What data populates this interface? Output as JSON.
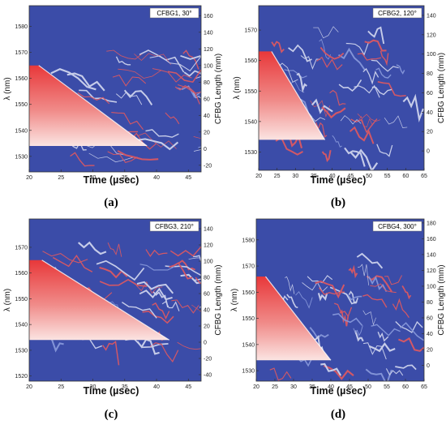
{
  "chart_data": [
    {
      "type": "heatmap",
      "panel_label": "(a)",
      "legend": "CFBG1, 30°",
      "xlabel": "Time (µsec)",
      "ylabel": "λ (nm)",
      "y2label": "CFBG Length (mm)",
      "xlim": [
        20,
        47
      ],
      "xticks": [
        20,
        25,
        30,
        35,
        40,
        45
      ],
      "ylim": [
        1524,
        1588
      ],
      "yticks": [
        1530,
        1540,
        1550,
        1560,
        1570,
        1580
      ],
      "y2lim": [
        -28,
        172
      ],
      "y2ticks": [
        -20,
        0,
        20,
        40,
        60,
        80,
        100,
        120,
        140,
        160
      ],
      "heated_region": {
        "lambda_top": 1565,
        "lambda_bottom": 1534,
        "t_start": 20,
        "t_plateau_end": 21.5,
        "t_ramp_end": 38.5
      }
    },
    {
      "type": "heatmap",
      "panel_label": "(b)",
      "legend": "CFBG2, 120°",
      "xlabel": "Time (µsec)",
      "ylabel": "λ (nm)",
      "y2label": "CFBG Length (mm)",
      "xlim": [
        20,
        65
      ],
      "xticks": [
        20,
        25,
        30,
        35,
        40,
        45,
        50,
        55,
        60,
        65
      ],
      "ylim": [
        1524,
        1578
      ],
      "yticks": [
        1530,
        1540,
        1550,
        1560,
        1570
      ],
      "y2lim": [
        -20,
        150
      ],
      "y2ticks": [
        0,
        20,
        40,
        60,
        80,
        100,
        120,
        140
      ],
      "heated_region": {
        "lambda_top": 1563,
        "lambda_bottom": 1534,
        "t_start": 20,
        "t_plateau_end": 23.5,
        "t_ramp_end": 38
      }
    },
    {
      "type": "heatmap",
      "panel_label": "(c)",
      "legend": "CFBG3, 210°",
      "xlabel": "Time (µsec)",
      "ylabel": "λ (nm)",
      "y2label": "CFBG Length (mm)",
      "xlim": [
        20,
        47
      ],
      "xticks": [
        20,
        25,
        30,
        35,
        40,
        45
      ],
      "ylim": [
        1518,
        1581
      ],
      "yticks": [
        1520,
        1530,
        1540,
        1550,
        1560,
        1570
      ],
      "y2lim": [
        -48,
        152
      ],
      "y2ticks": [
        -40,
        -20,
        0,
        20,
        40,
        60,
        80,
        100,
        120,
        140
      ],
      "heated_region": {
        "lambda_top": 1565,
        "lambda_bottom": 1534,
        "t_start": 20,
        "t_plateau_end": 22,
        "t_ramp_end": 42
      }
    },
    {
      "type": "heatmap",
      "panel_label": "(d)",
      "legend": "CFBG4, 300°",
      "xlabel": "Time (µsec)",
      "ylabel": "λ (nm)",
      "y2label": "CFBG Length (mm)",
      "xlim": [
        20,
        65
      ],
      "xticks": [
        20,
        25,
        30,
        35,
        40,
        45,
        50,
        55,
        60,
        65
      ],
      "ylim": [
        1526,
        1588
      ],
      "yticks": [
        1530,
        1540,
        1550,
        1560,
        1570,
        1580
      ],
      "y2lim": [
        -20,
        185
      ],
      "y2ticks": [
        0,
        20,
        40,
        60,
        80,
        100,
        120,
        140,
        160,
        180
      ],
      "heated_region": {
        "lambda_top": 1566,
        "lambda_bottom": 1534,
        "t_start": 20,
        "t_plateau_end": 22.5,
        "t_ramp_end": 40
      }
    }
  ]
}
